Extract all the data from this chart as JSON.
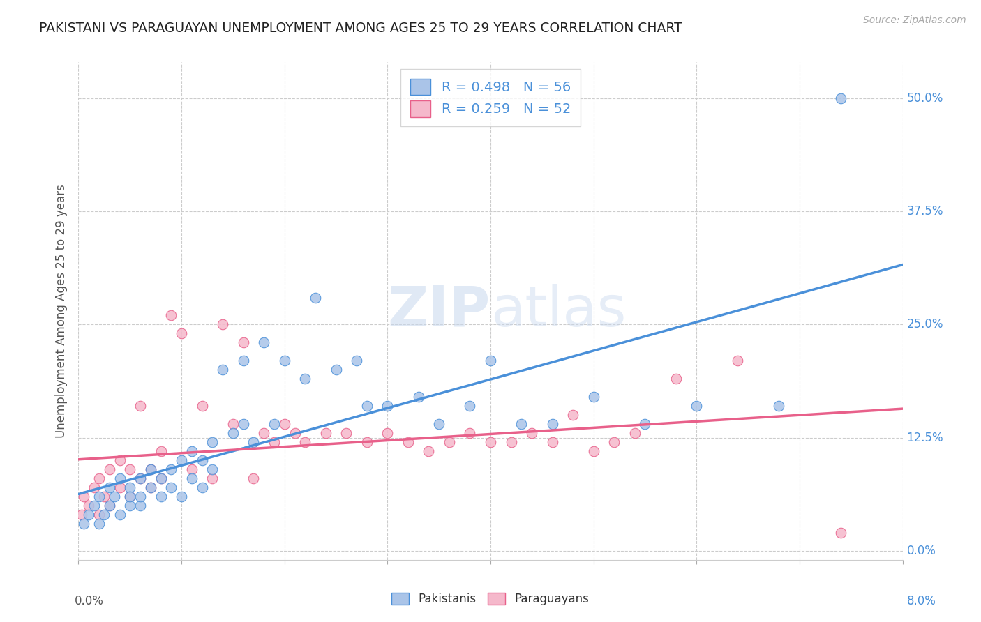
{
  "title": "PAKISTANI VS PARAGUAYAN UNEMPLOYMENT AMONG AGES 25 TO 29 YEARS CORRELATION CHART",
  "source": "Source: ZipAtlas.com",
  "ylabel": "Unemployment Among Ages 25 to 29 years",
  "ytick_labels": [
    "0.0%",
    "12.5%",
    "25.0%",
    "37.5%",
    "50.0%"
  ],
  "ytick_values": [
    0.0,
    0.125,
    0.25,
    0.375,
    0.5
  ],
  "xlim": [
    0.0,
    0.08
  ],
  "ylim": [
    -0.01,
    0.54
  ],
  "pakistani_R": 0.498,
  "pakistani_N": 56,
  "paraguayan_R": 0.259,
  "paraguayan_N": 52,
  "pakistani_color": "#aac4e8",
  "pakistani_line_color": "#4a90d9",
  "paraguayan_color": "#f5b8cb",
  "paraguayan_line_color": "#e8608a",
  "watermark_zip": "ZIP",
  "watermark_atlas": "atlas",
  "background_color": "#ffffff",
  "pakistani_x": [
    0.0005,
    0.001,
    0.0015,
    0.002,
    0.002,
    0.0025,
    0.003,
    0.003,
    0.0035,
    0.004,
    0.004,
    0.005,
    0.005,
    0.005,
    0.006,
    0.006,
    0.006,
    0.007,
    0.007,
    0.008,
    0.008,
    0.009,
    0.009,
    0.01,
    0.01,
    0.011,
    0.011,
    0.012,
    0.012,
    0.013,
    0.013,
    0.014,
    0.015,
    0.016,
    0.016,
    0.017,
    0.018,
    0.019,
    0.02,
    0.022,
    0.023,
    0.025,
    0.027,
    0.028,
    0.03,
    0.033,
    0.035,
    0.038,
    0.04,
    0.043,
    0.046,
    0.05,
    0.055,
    0.06,
    0.068,
    0.074
  ],
  "pakistani_y": [
    0.03,
    0.04,
    0.05,
    0.03,
    0.06,
    0.04,
    0.05,
    0.07,
    0.06,
    0.04,
    0.08,
    0.05,
    0.07,
    0.06,
    0.05,
    0.08,
    0.06,
    0.07,
    0.09,
    0.06,
    0.08,
    0.07,
    0.09,
    0.06,
    0.1,
    0.08,
    0.11,
    0.07,
    0.1,
    0.09,
    0.12,
    0.2,
    0.13,
    0.21,
    0.14,
    0.12,
    0.23,
    0.14,
    0.21,
    0.19,
    0.28,
    0.2,
    0.21,
    0.16,
    0.16,
    0.17,
    0.14,
    0.16,
    0.21,
    0.14,
    0.14,
    0.17,
    0.14,
    0.16,
    0.16,
    0.5
  ],
  "paraguayan_x": [
    0.0003,
    0.0005,
    0.001,
    0.0015,
    0.002,
    0.002,
    0.0025,
    0.003,
    0.003,
    0.004,
    0.004,
    0.005,
    0.005,
    0.006,
    0.006,
    0.007,
    0.007,
    0.008,
    0.008,
    0.009,
    0.01,
    0.011,
    0.012,
    0.013,
    0.014,
    0.015,
    0.016,
    0.017,
    0.018,
    0.019,
    0.02,
    0.021,
    0.022,
    0.024,
    0.026,
    0.028,
    0.03,
    0.032,
    0.034,
    0.036,
    0.038,
    0.04,
    0.042,
    0.044,
    0.046,
    0.048,
    0.05,
    0.052,
    0.054,
    0.058,
    0.064,
    0.074
  ],
  "paraguayan_y": [
    0.04,
    0.06,
    0.05,
    0.07,
    0.04,
    0.08,
    0.06,
    0.05,
    0.09,
    0.07,
    0.1,
    0.06,
    0.09,
    0.08,
    0.16,
    0.07,
    0.09,
    0.08,
    0.11,
    0.26,
    0.24,
    0.09,
    0.16,
    0.08,
    0.25,
    0.14,
    0.23,
    0.08,
    0.13,
    0.12,
    0.14,
    0.13,
    0.12,
    0.13,
    0.13,
    0.12,
    0.13,
    0.12,
    0.11,
    0.12,
    0.13,
    0.12,
    0.12,
    0.13,
    0.12,
    0.15,
    0.11,
    0.12,
    0.13,
    0.19,
    0.21,
    0.02
  ]
}
